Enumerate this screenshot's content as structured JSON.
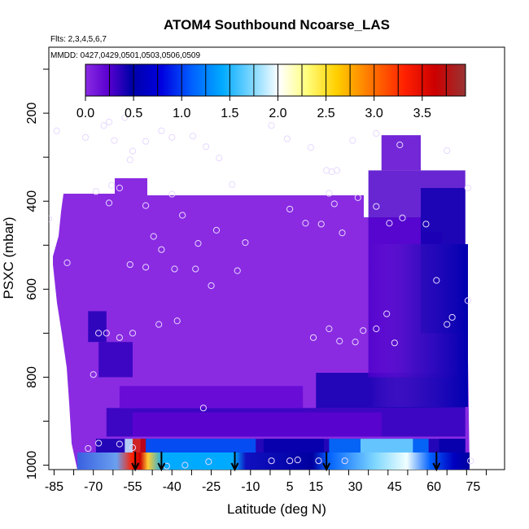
{
  "chart_data": {
    "type": "heatmap",
    "title": "ATOM4 Southbound Ncoarse_LAS",
    "notes": [
      "Flts: 2,3,4,5,6,7",
      "MMDD: 0427,0429,0501,0503,0506,0509"
    ],
    "xlabel": "Latitude (deg N)",
    "ylabel": "PSXC (mbar)",
    "xlim": [
      -87,
      87
    ],
    "ylim": [
      1010,
      50
    ],
    "x_ticks": [
      -85,
      -70,
      -55,
      -40,
      -25,
      -10,
      5,
      15,
      30,
      45,
      60,
      75
    ],
    "y_ticks": [
      200,
      400,
      600,
      800,
      1000
    ],
    "colorbar": {
      "range": [
        0.0,
        3.95
      ],
      "ticks": [
        0.0,
        0.5,
        1.0,
        1.5,
        2.0,
        2.5,
        3.0,
        3.5
      ],
      "tick_labels": [
        "0.0",
        "0.5",
        "1.0",
        "1.5",
        "2.0",
        "2.5",
        "3.0",
        "3.5"
      ],
      "colors": [
        "#8a2be2",
        "#5a00d0",
        "#0000a8",
        "#0000e0",
        "#0060ff",
        "#00aaff",
        "#80d8ff",
        "#ffffff",
        "#ffff80",
        "#ffd000",
        "#ff8000",
        "#ff2000",
        "#cc0000",
        "#993333"
      ]
    },
    "field_background_value": 0.1,
    "bands": [
      {
        "x": [
          -69,
          72
        ],
        "p": [
          940,
          985
        ],
        "value": 0.55
      },
      {
        "x": [
          -50,
          -8
        ],
        "p": [
          940,
          985
        ],
        "value": 1.2
      },
      {
        "x": [
          -58,
          -52
        ],
        "p": [
          940,
          985
        ],
        "value": 2.0
      },
      {
        "x": [
          -55,
          -50
        ],
        "p": [
          940,
          985
        ],
        "value": 3.6
      },
      {
        "x": [
          -5,
          18
        ],
        "p": [
          940,
          985
        ],
        "value": 0.6
      },
      {
        "x": [
          20,
          58
        ],
        "p": [
          940,
          985
        ],
        "value": 1.3
      },
      {
        "x": [
          32,
          52
        ],
        "p": [
          940,
          985
        ],
        "value": 1.8
      },
      {
        "x": [
          62,
          72
        ],
        "p": [
          940,
          985
        ],
        "value": 0.6
      },
      {
        "x": [
          -65,
          72
        ],
        "p": [
          870,
          935
        ],
        "value": 0.45
      },
      {
        "x": [
          -55,
          40
        ],
        "p": [
          880,
          935
        ],
        "value": 0.28
      },
      {
        "x": [
          15,
          72
        ],
        "p": [
          790,
          870
        ],
        "value": 0.55
      },
      {
        "x": [
          -60,
          10
        ],
        "p": [
          820,
          870
        ],
        "value": 0.25
      },
      {
        "x": [
          -68,
          -55
        ],
        "p": [
          720,
          800
        ],
        "value": 0.45
      },
      {
        "x": [
          -72,
          -65
        ],
        "p": [
          650,
          720
        ],
        "value": 0.5
      },
      {
        "x": [
          35,
          72
        ],
        "p": [
          330,
          800
        ],
        "value": 0.35
      },
      {
        "x": [
          55,
          72
        ],
        "p": [
          370,
          700
        ],
        "value": 0.55
      },
      {
        "x": [
          40,
          55
        ],
        "p": [
          250,
          330
        ],
        "value": 0.3
      }
    ],
    "arrows_lat": [
      -54,
      -44,
      -16,
      19,
      61
    ]
  }
}
